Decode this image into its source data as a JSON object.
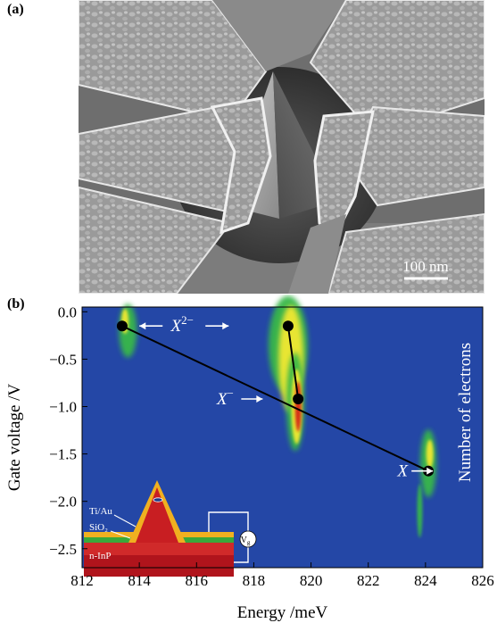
{
  "panel_a": {
    "label": "(a)",
    "scale_bar": "100 nm"
  },
  "panel_b": {
    "label": "(b)",
    "inset": {
      "layer_top": "Ti/Au",
      "layer_mid": "SiO₂",
      "substrate": "n-InP",
      "gate_symbol": "V",
      "gate_subscript": "g"
    },
    "colors": {
      "background": "#2447a6",
      "peak_low": "#37b84a",
      "peak_mid": "#f2e832",
      "peak_high": "#d42418"
    }
  },
  "chart_data": {
    "type": "heatmap",
    "xlabel": "Energy /meV",
    "ylabel": "Gate  voltage  /V",
    "right_label": "Number of electrons",
    "xlim": [
      812,
      826
    ],
    "ylim": [
      -2.7,
      0.05
    ],
    "x_ticks": [
      "812",
      "814",
      "816",
      "818",
      "820",
      "822",
      "824",
      "826"
    ],
    "y_ticks": [
      "0.0",
      "−0.5",
      "−1.0",
      "−1.5",
      "−2.0",
      "−2.5"
    ],
    "x_tick_values": [
      812,
      814,
      816,
      818,
      820,
      822,
      824,
      826
    ],
    "y_tick_values": [
      0,
      -0.5,
      -1.0,
      -1.5,
      -2.0,
      -2.5
    ],
    "annotations": [
      {
        "text": "X",
        "sup": "2−",
        "arrows": "both",
        "x": 815.5,
        "y": -0.15
      },
      {
        "text": "X",
        "sup": "−",
        "arrows": "right",
        "x": 817.0,
        "y": -0.92
      },
      {
        "text": "X",
        "sup": "",
        "arrows": "right",
        "x": 823.2,
        "y": -1.68
      }
    ],
    "points": [
      {
        "x": 813.4,
        "y": -0.15
      },
      {
        "x": 819.2,
        "y": -0.15
      },
      {
        "x": 819.55,
        "y": -0.92
      },
      {
        "x": 824.1,
        "y": -1.68
      }
    ],
    "lines": [
      {
        "from": [
          813.4,
          -0.15
        ],
        "to": [
          824.1,
          -1.68
        ]
      },
      {
        "from": [
          819.2,
          -0.15
        ],
        "to": [
          819.55,
          -0.92
        ]
      }
    ]
  }
}
